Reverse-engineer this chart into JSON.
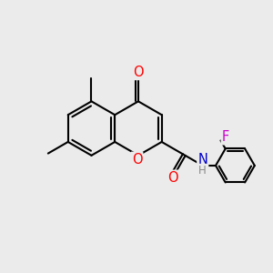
{
  "bg_color": "#ebebeb",
  "bond_color": "#000000",
  "bond_width": 1.5,
  "atom_colors": {
    "O": "#ff0000",
    "N": "#0000cd",
    "F": "#cc00cc",
    "H": "#888888",
    "C": "#000000"
  },
  "font_size": 9.5
}
